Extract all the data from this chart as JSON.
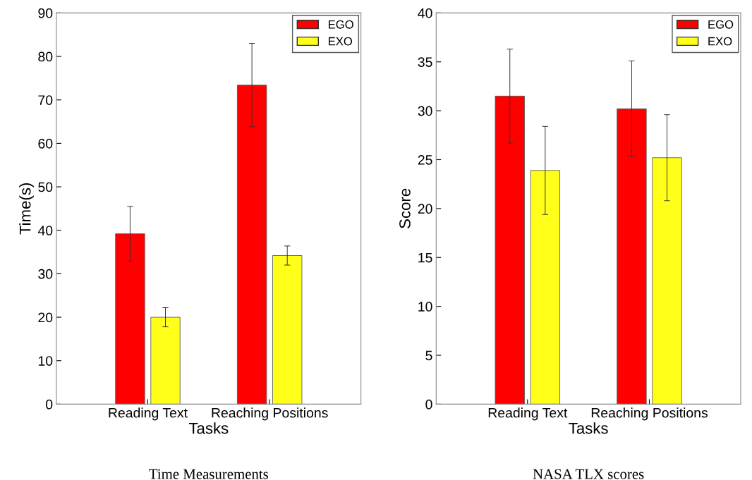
{
  "chart_data": [
    {
      "type": "bar",
      "title": "Time Measurements",
      "xlabel": "Tasks",
      "ylabel": "Time(s)",
      "categories": [
        "Reading Text",
        "Reaching Positions"
      ],
      "series": [
        {
          "name": "EGO",
          "color": "#ff0000",
          "values": [
            39.2,
            73.4
          ],
          "errors": [
            6.3,
            9.6
          ]
        },
        {
          "name": "EXO",
          "color": "#ffff1a",
          "values": [
            20.0,
            34.2
          ],
          "errors": [
            2.2,
            2.2
          ]
        }
      ],
      "ylim": [
        0,
        90
      ],
      "yticks": [
        0,
        10,
        20,
        30,
        40,
        50,
        60,
        70,
        80,
        90
      ],
      "legend": "top right",
      "grid": false
    },
    {
      "type": "bar",
      "title": "NASA TLX scores",
      "xlabel": "Tasks",
      "ylabel": "Score",
      "categories": [
        "Reading Text",
        "Reaching Positions"
      ],
      "series": [
        {
          "name": "EGO",
          "color": "#ff0000",
          "values": [
            31.5,
            30.2
          ],
          "errors": [
            4.8,
            4.9
          ]
        },
        {
          "name": "EXO",
          "color": "#ffff1a",
          "values": [
            23.9,
            25.2
          ],
          "errors": [
            4.5,
            4.4
          ]
        }
      ],
      "ylim": [
        0,
        40
      ],
      "yticks": [
        0,
        5,
        10,
        15,
        20,
        25,
        30,
        35,
        40
      ],
      "legend": "top right",
      "grid": false
    }
  ]
}
